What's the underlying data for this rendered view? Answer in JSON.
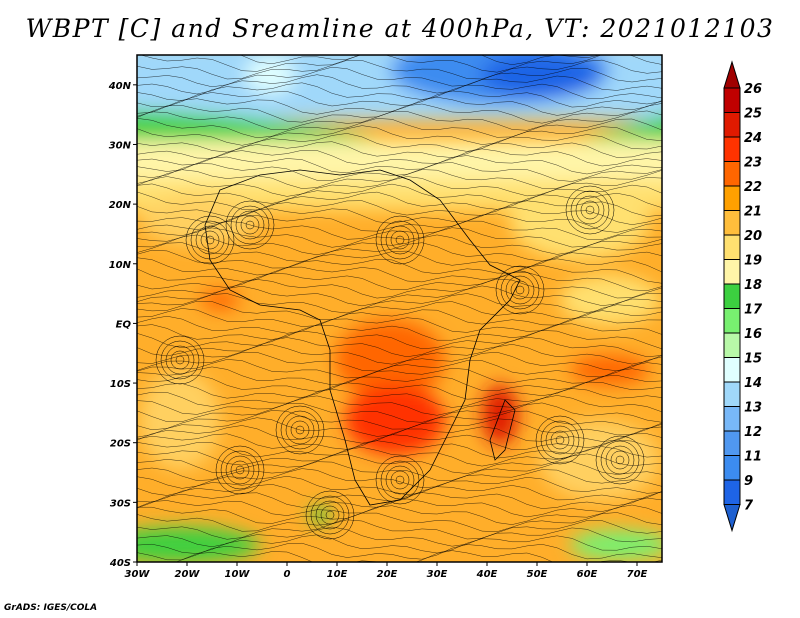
{
  "title": "WBPT [C] and Sreamline at 400hPa, VT: 2021012103",
  "credit": "GrADS: IGES/COLA",
  "map": {
    "lat_labels": [
      "40N",
      "30N",
      "20N",
      "10N",
      "EQ",
      "10S",
      "20S",
      "30S",
      "40S"
    ],
    "lat_values": [
      40,
      30,
      20,
      10,
      0,
      -10,
      -20,
      -30,
      -40
    ],
    "lon_labels": [
      "30W",
      "20W",
      "10W",
      "0",
      "10E",
      "20E",
      "30E",
      "40E",
      "50E",
      "60E",
      "70E"
    ],
    "lon_values": [
      -30,
      -20,
      -10,
      0,
      10,
      20,
      30,
      40,
      50,
      60,
      70
    ],
    "lon_range": [
      -30,
      75
    ],
    "lat_range": [
      -40,
      45
    ]
  },
  "colorbar": {
    "labels": [
      "26",
      "25",
      "24",
      "23",
      "22",
      "21",
      "20",
      "19",
      "18",
      "17",
      "16",
      "15",
      "14",
      "13",
      "12",
      "11",
      "9",
      "7"
    ],
    "colors": [
      "#c00000",
      "#e01a00",
      "#ff3300",
      "#ff6600",
      "#ffa000",
      "#ffbe3c",
      "#ffe070",
      "#fff5a8",
      "#3cd040",
      "#78f070",
      "#b8f8a8",
      "#e0ffff",
      "#a0d8fa",
      "#78b8f8",
      "#5098f0",
      "#3c8cf0",
      "#1e64e6"
    ],
    "top_arrow_color": "#a00000",
    "bottom_arrow_color": "#1e60d0"
  }
}
